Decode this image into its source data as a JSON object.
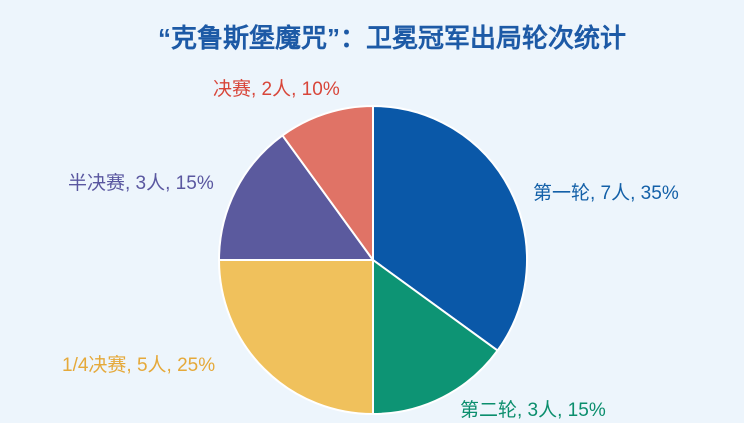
{
  "colors": {
    "background": "#edf5fc",
    "title": "#1d5aa6",
    "separator": "#ffffff"
  },
  "chart_data": {
    "type": "pie",
    "title": "“克鲁斯堡魔咒”：卫冕冠军出局轮次统计",
    "start_angle": "top",
    "direction": "clockwise",
    "legend": "none",
    "slices": [
      {
        "label": "第一轮, 7人, 35%",
        "count": 7,
        "percent": 35,
        "color": "#0a58a8",
        "label_color": "#1360a8"
      },
      {
        "label": "第二轮, 3人, 15%",
        "count": 3,
        "percent": 15,
        "color": "#0d9474",
        "label_color": "#0b8e6d"
      },
      {
        "label": "1/4决赛, 5人, 25%",
        "count": 5,
        "percent": 25,
        "color": "#f0c15c",
        "label_color": "#e5a93a"
      },
      {
        "label": "半决赛, 3人, 15%",
        "count": 3,
        "percent": 15,
        "color": "#5b5a9e",
        "label_color": "#5a57a0"
      },
      {
        "label": "决赛, 2人, 10%",
        "count": 2,
        "percent": 10,
        "color": "#e07366",
        "label_color": "#d8463a"
      }
    ]
  }
}
